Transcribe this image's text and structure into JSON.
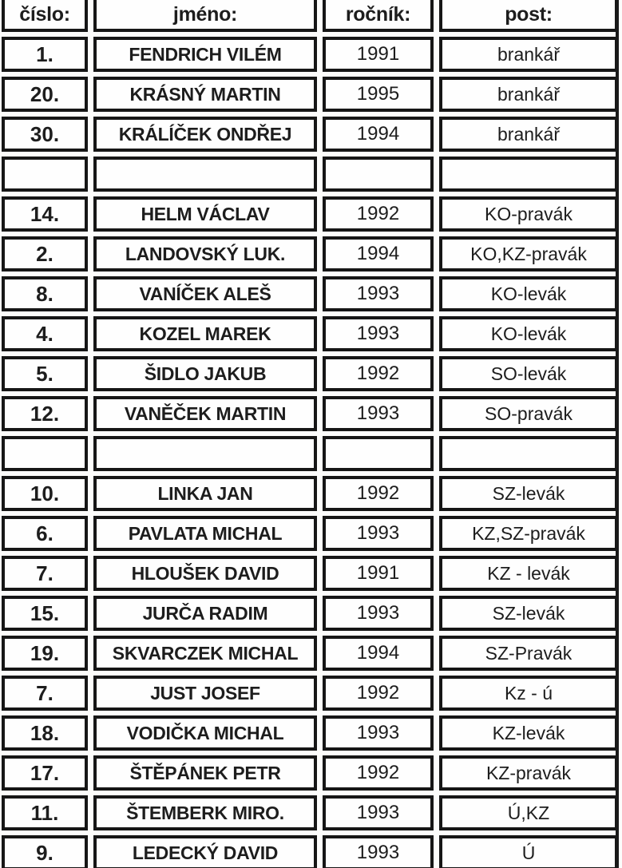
{
  "table": {
    "headers": [
      {
        "key": "cislo",
        "label": "číslo:"
      },
      {
        "key": "jmeno",
        "label": "jméno:"
      },
      {
        "key": "rocnik",
        "label": "ročník:"
      },
      {
        "key": "post",
        "label": "post:"
      }
    ],
    "rows": [
      [
        "1.",
        "FENDRICH VILÉM",
        "1991",
        "brankář"
      ],
      [
        "20.",
        "KRÁSNÝ MARTIN",
        "1995",
        "brankář"
      ],
      [
        "30.",
        "KRÁLÍČEK ONDŘEJ",
        "1994",
        "brankář"
      ],
      [
        "",
        "",
        "",
        ""
      ],
      [
        "14.",
        "HELM VÁCLAV",
        "1992",
        "KO-pravák"
      ],
      [
        "2.",
        "LANDOVSKÝ LUK.",
        "1994",
        "KO,KZ-pravák"
      ],
      [
        "8.",
        "VANÍČEK ALEŠ",
        "1993",
        "KO-levák"
      ],
      [
        "4.",
        "KOZEL MAREK",
        "1993",
        "KO-levák"
      ],
      [
        "5.",
        "ŠIDLO JAKUB",
        "1992",
        "SO-levák"
      ],
      [
        "12.",
        "VANĚČEK MARTIN",
        "1993",
        "SO-pravák"
      ],
      [
        "",
        "",
        "",
        ""
      ],
      [
        "10.",
        "LINKA JAN",
        "1992",
        "SZ-levák"
      ],
      [
        "6.",
        "PAVLATA MICHAL",
        "1993",
        "KZ,SZ-pravák"
      ],
      [
        "7.",
        "HLOUŠEK DAVID",
        "1991",
        "KZ - levák"
      ],
      [
        "15.",
        "JURČA RADIM",
        "1993",
        "SZ-levák"
      ],
      [
        "19.",
        "SKVARCZEK MICHAL",
        "1994",
        "SZ-Pravák"
      ],
      [
        "7.",
        "JUST JOSEF",
        "1992",
        "Kz - ú"
      ],
      [
        "18.",
        "VODIČKA MICHAL",
        "1993",
        "KZ-levák"
      ],
      [
        "17.",
        "ŠTĚPÁNEK PETR",
        "1992",
        "KZ-pravák"
      ],
      [
        "11.",
        "ŠTEMBERK MIRO.",
        "1993",
        "Ú,KZ"
      ],
      [
        "9.",
        "LEDECKÝ DAVID",
        "1993",
        "Ú"
      ]
    ]
  },
  "colors": {
    "border": "#161616",
    "text": "#1d1d1d",
    "background": "#fcfcfb"
  }
}
